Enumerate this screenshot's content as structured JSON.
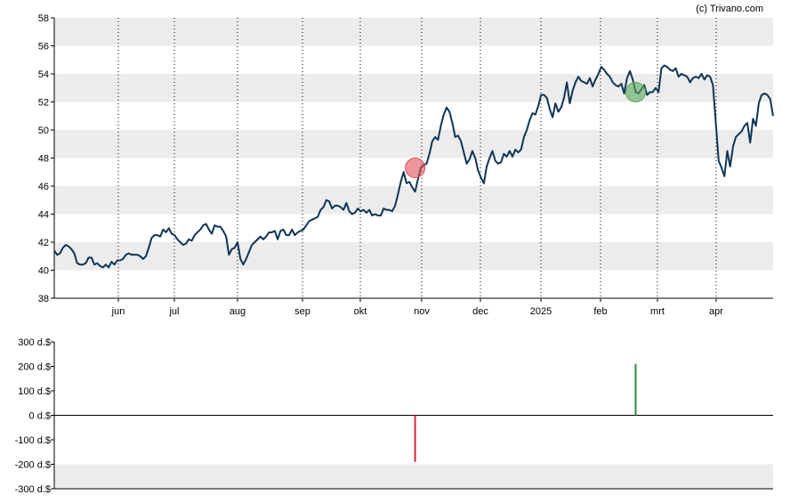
{
  "credit": "(c) Trivano.com",
  "colors": {
    "price_line": "#0d3557",
    "band": "#ececec",
    "buy_marker": "#5aa85a",
    "sell_marker": "#e0505a",
    "buy_bar": "#2e8b3e",
    "sell_bar": "#d8283a"
  },
  "chart_data": [
    {
      "type": "line",
      "title": "",
      "xlabel": "",
      "ylabel": "",
      "ylim": [
        38,
        58
      ],
      "y_ticks": [
        "38",
        "40",
        "42",
        "44",
        "46",
        "48",
        "50",
        "52",
        "54",
        "56",
        "58"
      ],
      "x_ticks": [
        "jun",
        "jul",
        "aug",
        "sep",
        "okt",
        "nov",
        "dec",
        "2025",
        "feb",
        "mrt",
        "apr"
      ],
      "grid": "vertical dotted lines at month ticks, alternating horizontal bands",
      "series": [
        {
          "values": [
            41.4,
            41.1,
            41.2,
            41.6,
            41.8,
            41.7,
            41.5,
            41.2,
            40.5,
            40.4,
            40.4,
            40.5,
            40.9,
            40.9,
            40.4,
            40.5,
            40.3,
            40.2,
            40.4,
            40.2,
            40.6,
            40.4,
            40.7,
            40.7,
            40.8,
            41.1,
            41.2,
            41.1,
            41.1,
            41.1,
            41.0,
            40.8,
            41.0,
            41.6,
            42.3,
            42.5,
            42.5,
            42.4,
            42.9,
            42.7,
            43.0,
            42.6,
            42.5,
            42.2,
            42.0,
            41.8,
            41.9,
            42.2,
            42.1,
            42.5,
            42.7,
            42.9,
            43.2,
            43.3,
            42.9,
            42.6,
            43.2,
            43.1,
            43.1,
            42.8,
            42.4,
            41.1,
            41.5,
            41.6,
            42.0,
            40.8,
            40.4,
            40.8,
            41.3,
            41.8,
            42.0,
            42.2,
            42.4,
            42.2,
            42.4,
            42.7,
            42.7,
            42.8,
            42.2,
            42.8,
            42.9,
            42.5,
            42.5,
            42.9,
            42.5,
            42.7,
            42.8,
            42.9,
            43.2,
            43.5,
            43.6,
            43.7,
            43.8,
            44.3,
            44.5,
            45.0,
            44.9,
            44.4,
            44.6,
            44.6,
            44.5,
            44.3,
            44.8,
            44.2,
            44.0,
            44.1,
            44.4,
            44.2,
            44.3,
            44.1,
            44.3,
            43.9,
            44.0,
            43.9,
            43.9,
            44.4,
            44.3,
            44.3,
            44.2,
            44.6,
            45.4,
            46.3,
            47.0,
            46.2,
            46.3,
            45.9,
            45.6,
            46.5,
            47.3,
            47.5,
            47.6,
            48.3,
            49.2,
            49.5,
            49.3,
            50.3,
            51.1,
            51.6,
            51.3,
            50.5,
            49.5,
            49.6,
            49.2,
            48.4,
            47.6,
            47.9,
            48.5,
            48.0,
            47.1,
            46.6,
            46.2,
            47.4,
            48.0,
            48.5,
            47.8,
            47.6,
            47.7,
            48.3,
            48.1,
            48.5,
            48.1,
            48.6,
            48.4,
            48.6,
            49.5,
            50.0,
            50.7,
            51.2,
            51.1,
            51.7,
            52.5,
            52.5,
            52.3,
            51.5,
            50.9,
            51.9,
            51.3,
            51.6,
            52.3,
            53.4,
            51.9,
            52.8,
            53.4,
            53.8,
            53.5,
            53.4,
            53.3,
            53.7,
            53.1,
            53.6,
            54.0,
            54.5,
            54.3,
            54.0,
            53.8,
            53.4,
            53.2,
            53.1,
            53.3,
            52.6,
            53.7,
            54.2,
            53.6,
            52.7,
            52.6,
            52.9,
            53.2,
            52.5,
            52.7,
            52.7,
            53.0,
            52.7,
            54.4,
            54.6,
            54.5,
            54.3,
            54.2,
            54.4,
            53.8,
            54.0,
            53.9,
            53.8,
            53.4,
            53.7,
            53.8,
            53.7,
            54.0,
            53.6,
            53.9,
            53.8,
            53.2,
            50.5,
            47.8,
            47.3,
            46.7,
            48.5,
            47.4,
            48.8,
            49.5,
            49.7,
            49.9,
            50.3,
            50.5,
            49.1,
            50.8,
            50.3,
            51.9,
            52.5,
            52.6,
            52.5,
            52.2,
            51.0
          ]
        }
      ],
      "markers": [
        {
          "kind": "sell",
          "x_index": 126,
          "y": 47.3
        },
        {
          "kind": "buy",
          "x_index": 203,
          "y": 52.7
        }
      ]
    },
    {
      "type": "bar",
      "title": "",
      "xlabel": "",
      "ylabel": "",
      "ylim": [
        -300,
        300
      ],
      "y_ticks": [
        "300 d.$",
        "200 d.$",
        "100 d.$",
        "0 d.$",
        "-100 d.$",
        "-200 d.$",
        "-300 d.$"
      ],
      "bars": [
        {
          "kind": "sell",
          "x_index": 126,
          "value": -190
        },
        {
          "kind": "buy",
          "x_index": 203,
          "value": 210
        }
      ]
    }
  ]
}
